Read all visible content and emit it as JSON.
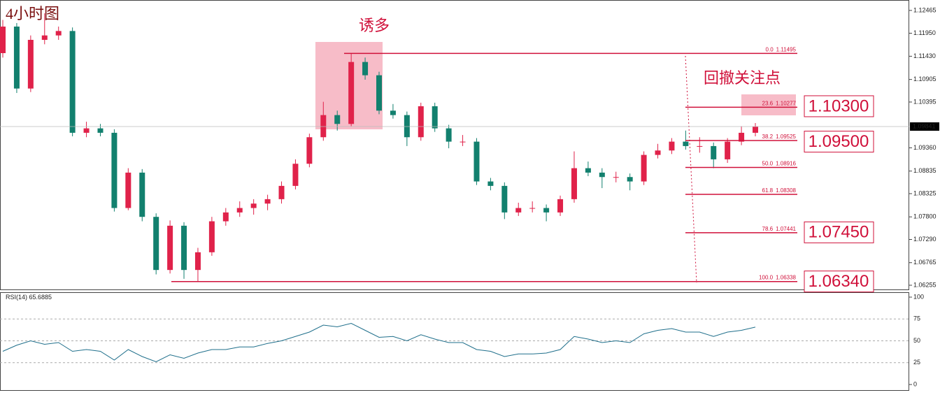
{
  "annotations": {
    "timeframe": "4小时图",
    "trap": "诱多",
    "focus": "回撤关注点"
  },
  "chart_data": {
    "type": "candlestick",
    "up_color": "#e0224a",
    "down_color": "#12806e",
    "ylim": [
      1.06176,
      1.12669
    ],
    "yticks": [
      1.12465,
      {
        "value": 1.1195,
        "label": "1.11950"
      },
      {
        "value": 1.1143,
        "label": "1.11430"
      },
      1.10905,
      1.10395,
      {
        "value": 1.0936,
        "label": "1.09360"
      },
      1.08835,
      1.08325,
      {
        "value": 1.078,
        "label": "1.07800"
      },
      {
        "value": 1.0729,
        "label": "1.07290"
      },
      1.06765,
      1.06255
    ],
    "last_price": 1.09841,
    "candles": [
      [
        1.115,
        1.1225,
        1.114,
        1.121
      ],
      [
        1.121,
        1.1218,
        1.106,
        1.107
      ],
      [
        1.107,
        1.119,
        1.1062,
        1.118
      ],
      [
        1.118,
        1.124,
        1.117,
        1.119
      ],
      [
        1.119,
        1.121,
        1.118,
        1.12
      ],
      [
        1.12,
        1.1208,
        1.0962,
        1.097
      ],
      [
        1.097,
        1.0995,
        1.096,
        1.098
      ],
      [
        1.098,
        1.099,
        1.0962,
        1.097
      ],
      [
        1.097,
        1.0978,
        1.0792,
        1.08
      ],
      [
        1.08,
        1.089,
        1.0795,
        1.088
      ],
      [
        1.088,
        1.0888,
        1.077,
        1.078
      ],
      [
        1.078,
        1.0788,
        1.065,
        1.066
      ],
      [
        1.066,
        1.0772,
        1.0652,
        1.076
      ],
      [
        1.076,
        1.0768,
        1.064,
        1.066
      ],
      [
        1.066,
        1.071,
        1.0634,
        1.07
      ],
      [
        1.07,
        1.078,
        1.0692,
        1.077
      ],
      [
        1.077,
        1.08,
        1.076,
        1.079
      ],
      [
        1.079,
        1.0815,
        1.078,
        1.08
      ],
      [
        1.08,
        1.082,
        1.0785,
        1.081
      ],
      [
        1.081,
        1.083,
        1.0795,
        1.082
      ],
      [
        1.082,
        1.086,
        1.081,
        1.085
      ],
      [
        1.085,
        1.091,
        1.0842,
        1.09
      ],
      [
        1.09,
        1.0968,
        1.0892,
        1.096
      ],
      [
        1.096,
        1.104,
        1.0952,
        1.101
      ],
      [
        1.101,
        1.102,
        1.0975,
        1.099
      ],
      [
        1.099,
        1.115,
        1.0985,
        1.113
      ],
      [
        1.113,
        1.114,
        1.109,
        1.11
      ],
      [
        1.11,
        1.1108,
        1.1012,
        1.102
      ],
      [
        1.102,
        1.1035,
        1.1002,
        1.101
      ],
      [
        1.101,
        1.1018,
        1.094,
        1.096
      ],
      [
        1.096,
        1.1038,
        1.0952,
        1.103
      ],
      [
        1.103,
        1.1038,
        1.0972,
        1.098
      ],
      [
        1.098,
        1.0988,
        1.0935,
        1.095
      ],
      [
        1.095,
        1.0965,
        1.094,
        1.095
      ],
      [
        1.095,
        1.0958,
        1.0852,
        1.086
      ],
      [
        1.086,
        1.0868,
        1.084,
        1.085
      ],
      [
        1.085,
        1.0858,
        1.0775,
        1.079
      ],
      [
        1.079,
        1.0812,
        1.0782,
        1.08
      ],
      [
        1.08,
        1.0815,
        1.079,
        1.08
      ],
      [
        1.08,
        1.0808,
        1.077,
        1.079
      ],
      [
        1.079,
        1.0828,
        1.0782,
        1.082
      ],
      [
        1.082,
        1.0928,
        1.0812,
        1.089
      ],
      [
        1.089,
        1.0905,
        1.0872,
        1.088
      ],
      [
        1.088,
        1.089,
        1.0845,
        1.087
      ],
      [
        1.087,
        1.0882,
        1.0858,
        1.087
      ],
      [
        1.087,
        1.0878,
        1.084,
        1.086
      ],
      [
        1.086,
        1.0928,
        1.0852,
        1.092
      ],
      [
        1.092,
        1.0945,
        1.0912,
        1.093
      ],
      [
        1.093,
        1.0958,
        1.0922,
        1.095
      ],
      [
        1.095,
        1.0975,
        1.0932,
        1.094
      ],
      [
        1.094,
        1.096,
        1.0925,
        1.094
      ],
      [
        1.094,
        1.0948,
        1.089,
        1.091
      ],
      [
        1.091,
        1.0958,
        1.0902,
        1.095
      ],
      [
        1.095,
        1.0985,
        1.0942,
        1.097
      ],
      [
        1.097,
        1.0992,
        1.0962,
        1.0984
      ]
    ],
    "fib": [
      {
        "level": {
          "value": 0,
          "label": "0.0"
        },
        "price": 1.11495
      },
      {
        "level": 23.6,
        "price": 1.10277
      },
      {
        "level": 38.2,
        "price": 1.09525
      },
      {
        "level": {
          "value": 50,
          "label": "50.0"
        },
        "price": 1.08916
      },
      {
        "level": 61.8,
        "price": 1.08308
      },
      {
        "level": 78.6,
        "price": 1.07441
      },
      {
        "level": {
          "value": 100,
          "label": "100.0"
        },
        "price": 1.06338
      }
    ],
    "key_levels": [
      {
        "value": 1.103,
        "label": "1.10300"
      },
      {
        "value": 1.095,
        "label": "1.09500"
      },
      {
        "value": 1.0745,
        "label": "1.07450"
      },
      {
        "value": 1.0634,
        "label": "1.06340"
      }
    ],
    "rsi": {
      "label": "RSI(14)",
      "last": 65.6885,
      "color": "#1f6f8b",
      "ylim": [
        0,
        100
      ],
      "yticks": [
        100,
        75,
        50,
        25,
        0
      ],
      "values": [
        38,
        45,
        50,
        46,
        48,
        38,
        40,
        38,
        28,
        40,
        32,
        26,
        34,
        30,
        36,
        40,
        40,
        43,
        43,
        47,
        50,
        55,
        60,
        68,
        66,
        70,
        62,
        54,
        55,
        50,
        57,
        52,
        48,
        48,
        40,
        38,
        32,
        35,
        35,
        36,
        40,
        55,
        52,
        48,
        50,
        48,
        58,
        62,
        64,
        60,
        60,
        55,
        60,
        62,
        65.7
      ]
    }
  }
}
